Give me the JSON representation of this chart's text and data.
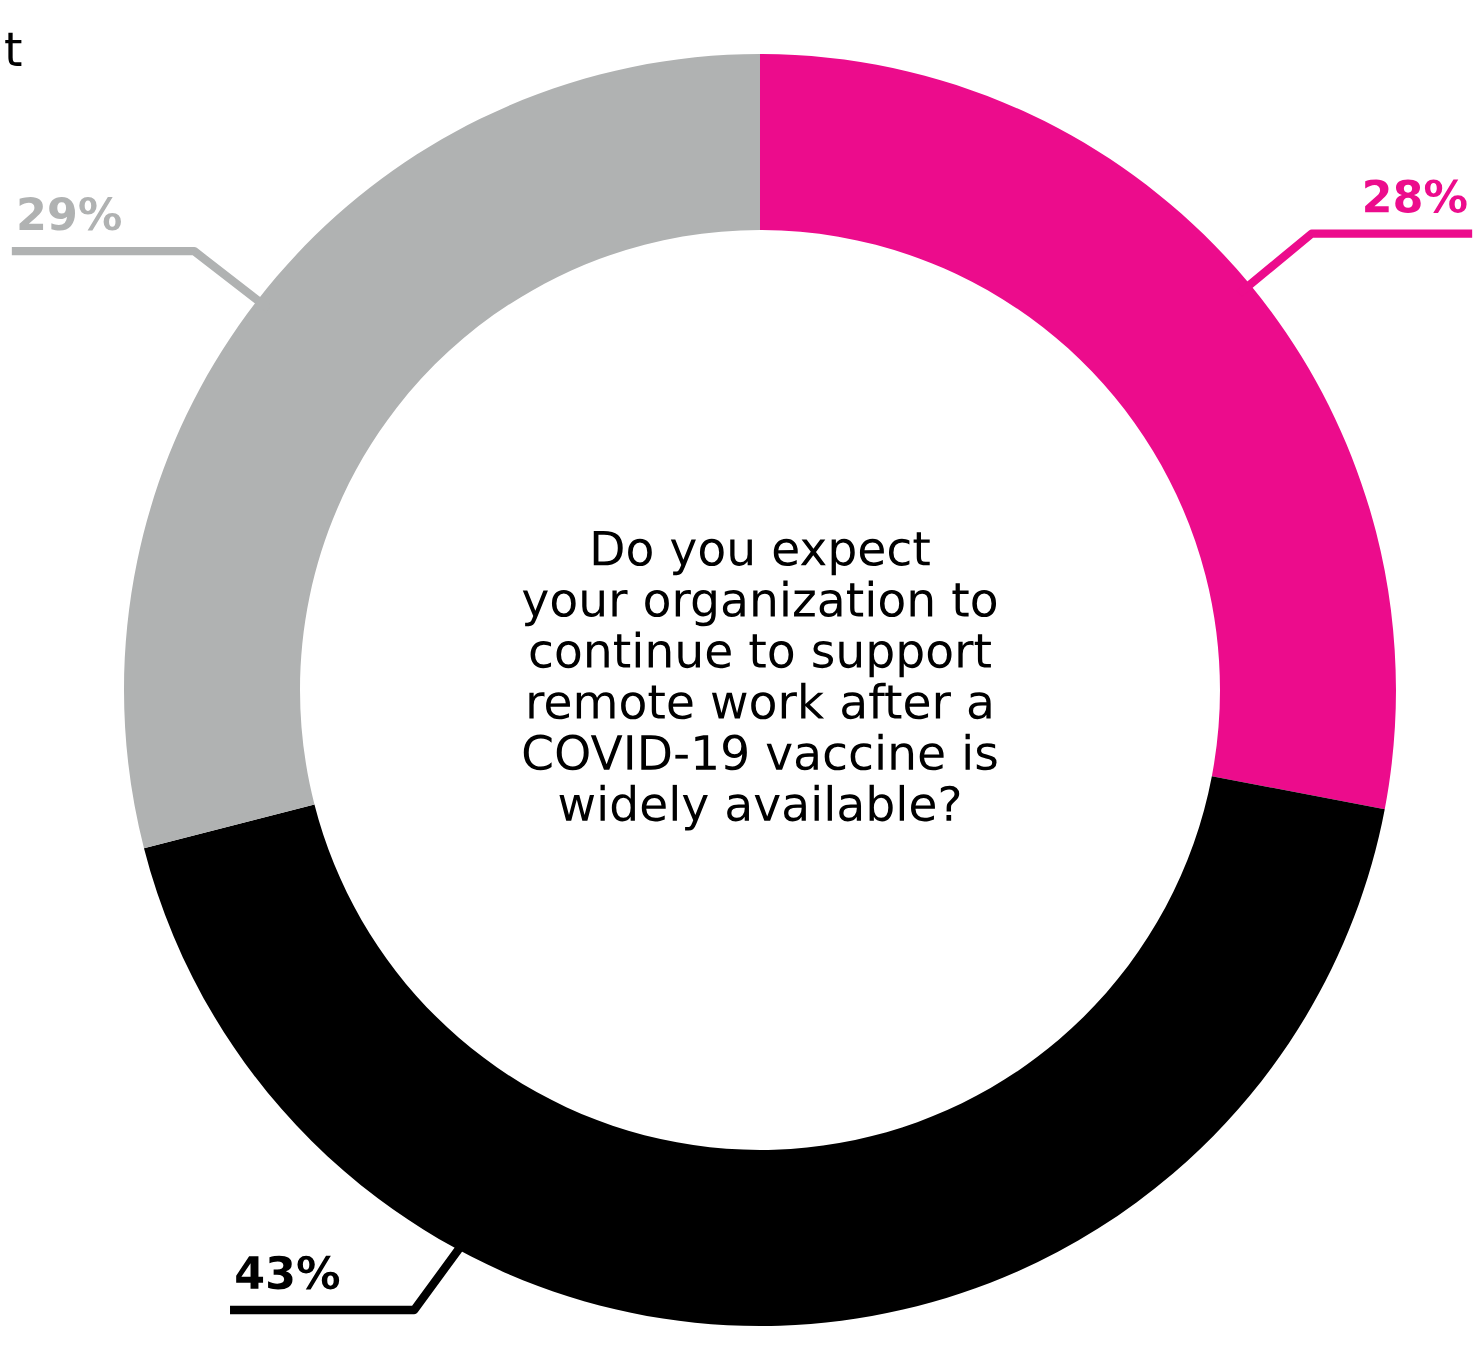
{
  "chart_data": {
    "type": "donut",
    "title": "Do you expect\nyour organization to\ncontinue to support\nremote work after a\nCOVID-19 vaccine is\nwidely available?",
    "categories": [
      null,
      null,
      null
    ],
    "values": [
      28,
      43,
      29
    ],
    "colors": [
      "#ec0c8c",
      "#000000",
      "#b0b2b2"
    ],
    "value_labels": [
      "28%",
      "43%",
      "29%"
    ],
    "annotations": [
      "t"
    ]
  }
}
